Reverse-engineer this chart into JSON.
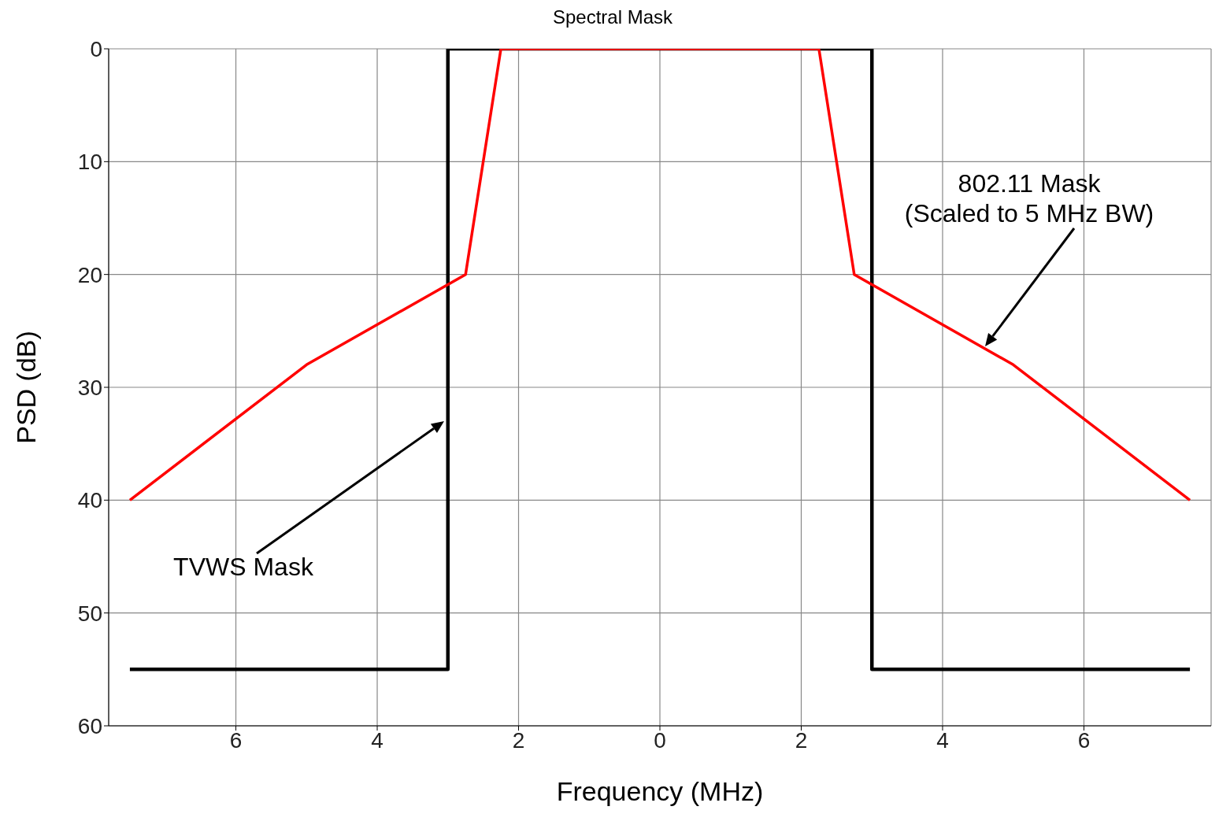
{
  "chart_data": {
    "type": "line",
    "title": "Spectral Mask",
    "xlabel": "Frequency (MHz)",
    "ylabel": "PSD (dB)",
    "xlim": [
      -7.8,
      7.8
    ],
    "xticks": [
      {
        "value": -6,
        "label": "6"
      },
      {
        "value": -4,
        "label": "4"
      },
      {
        "value": -2,
        "label": "2"
      },
      0,
      2,
      4,
      6
    ],
    "ylim": [
      60,
      0
    ],
    "yticks": [
      0,
      10,
      20,
      30,
      40,
      50,
      60
    ],
    "grid": true,
    "line_style": "solid",
    "marker": "none",
    "series": [
      {
        "color": "#000000",
        "x": [
          -7.5,
          -3,
          -3,
          3,
          3,
          7.5
        ],
        "values": [
          55,
          55,
          0,
          0,
          55,
          55
        ]
      },
      {
        "color": "#ff0000",
        "x": [
          -7.5,
          -5,
          -2.75,
          -2.25,
          2.25,
          2.75,
          5,
          7.5
        ],
        "values": [
          40,
          28,
          20,
          0,
          0,
          20,
          28,
          40
        ]
      }
    ],
    "annotations": [
      "802.11 Mask\n(Scaled to 5 MHz BW)",
      "TVWS Mask"
    ]
  }
}
